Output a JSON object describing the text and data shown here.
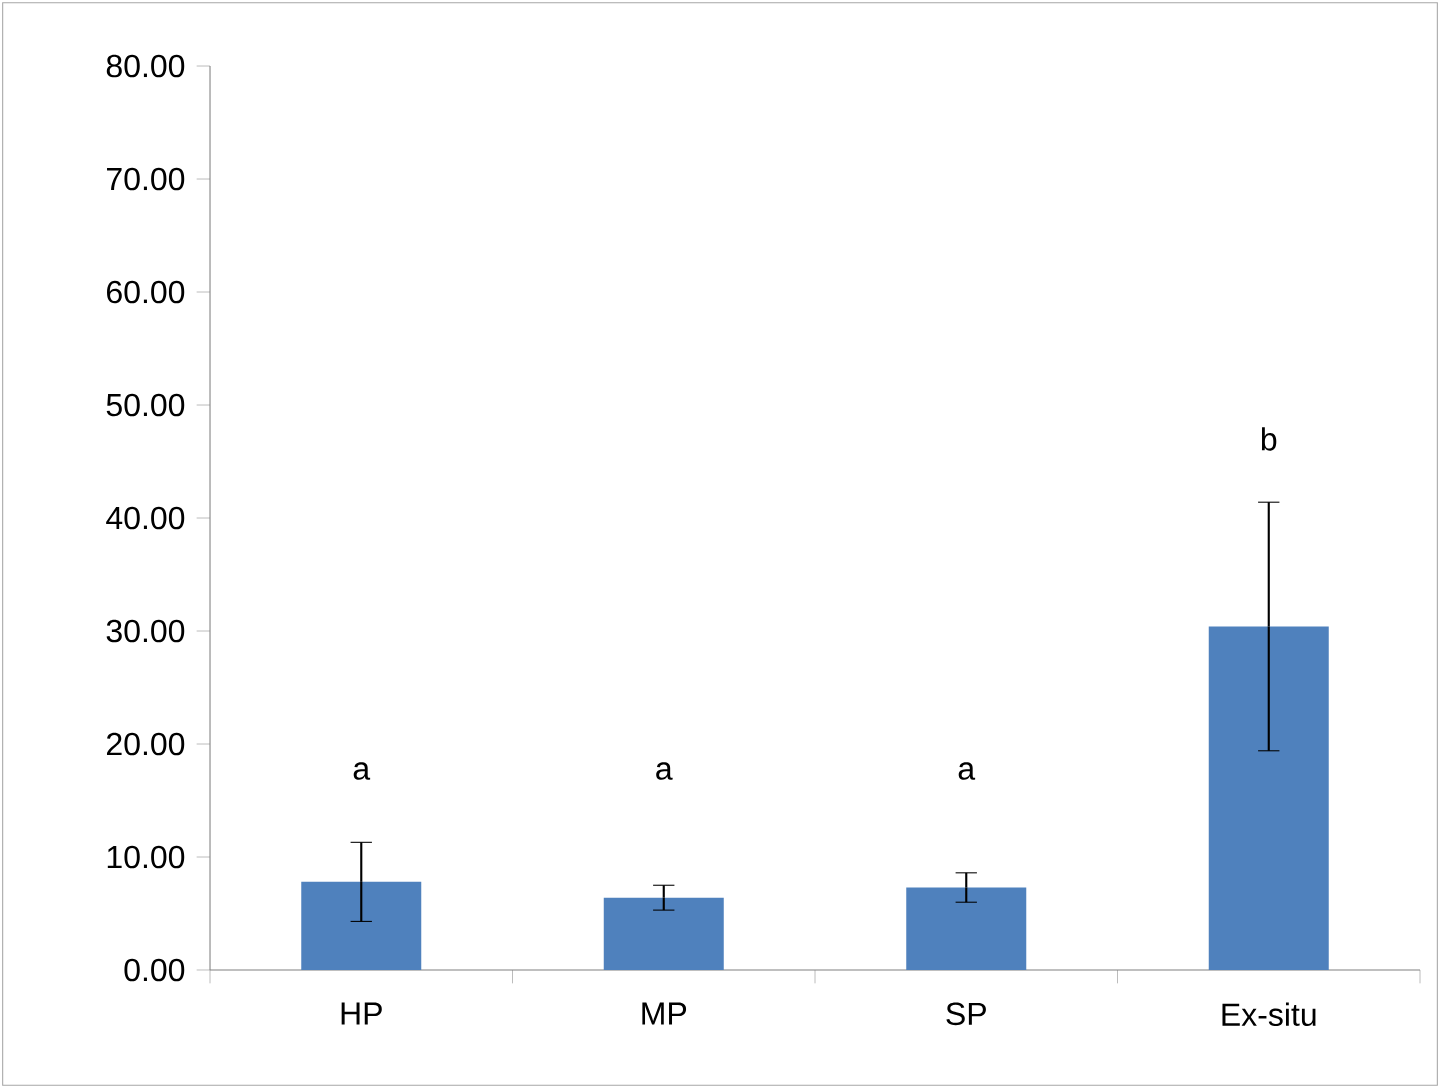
{
  "chart_data": {
    "type": "bar",
    "categories": [
      "HP",
      "MP",
      "SP",
      "Ex-situ"
    ],
    "values": [
      7.8,
      6.4,
      7.3,
      30.4
    ],
    "errors": [
      3.5,
      1.1,
      1.3,
      11.0
    ],
    "color": "#4f81bd",
    "ylim": [
      0,
      80
    ],
    "yticks": [
      {
        "value": 0,
        "label": "0.00"
      },
      {
        "value": 10,
        "label": "10.00"
      },
      {
        "value": 20,
        "label": "20.00"
      },
      {
        "value": 30,
        "label": "30.00"
      },
      {
        "value": 40,
        "label": "40.00"
      },
      {
        "value": 50,
        "label": "50.00"
      },
      {
        "value": 60,
        "label": "60.00"
      },
      {
        "value": 70,
        "label": "70.00"
      },
      {
        "value": 80,
        "label": "80.00"
      }
    ],
    "annotations": [
      "a",
      "a",
      "a",
      "b"
    ]
  }
}
